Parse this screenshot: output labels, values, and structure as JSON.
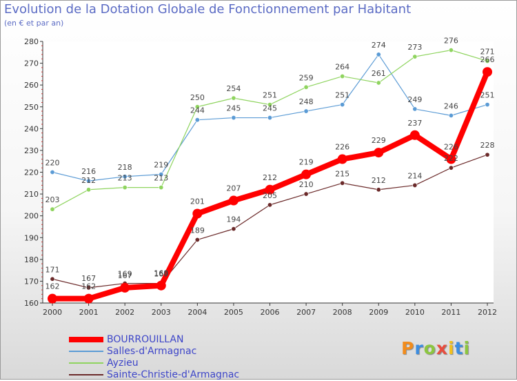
{
  "header": {
    "title": "Evolution de la Dotation Globale de Fonctionnement par Habitant",
    "subtitle": "(en € et par an)"
  },
  "logo": {
    "letters": [
      "P",
      "r",
      "o",
      "x",
      "i",
      "t",
      "i"
    ],
    "colors": [
      "#f28c1c",
      "#3c8de0",
      "#8cc63f",
      "#e84c3d",
      "#f2c01c",
      "#3c8de0",
      "#8cc63f"
    ]
  },
  "chart_data": {
    "type": "line",
    "title": "Evolution de la Dotation Globale de Fonctionnement par Habitant",
    "subtitle": "(en € et par an)",
    "xlabel": "",
    "ylabel": "",
    "ylim": [
      160,
      280
    ],
    "yticks": [
      160,
      170,
      180,
      190,
      200,
      210,
      220,
      230,
      240,
      250,
      260,
      270,
      280
    ],
    "grid": false,
    "legend_position": "bottom-left",
    "x": [
      "2000",
      "2001",
      "2002",
      "2003",
      "2004",
      "2005",
      "2006",
      "2007",
      "2008",
      "2009",
      "2010",
      "2011",
      "2012"
    ],
    "series": [
      {
        "name": "BOURROUILLAN",
        "color": "#ff0000",
        "values": [
          162,
          162,
          167,
          168,
          201,
          207,
          212,
          219,
          226,
          229,
          237,
          226,
          266
        ],
        "labels": [
          "162",
          "162",
          "167",
          "168",
          "201",
          "207",
          "212",
          "219",
          "226",
          "229",
          "237",
          "226",
          "266"
        ]
      },
      {
        "name": "Salles-d'Armagnac",
        "color": "#5b9bd5",
        "values": [
          220,
          216,
          218,
          219,
          244,
          245,
          245,
          248,
          251,
          274,
          249,
          246,
          251
        ],
        "labels": [
          "220",
          "216",
          "218",
          "219",
          "244",
          "245",
          "245",
          "248",
          "251",
          "274",
          "249",
          "246",
          "251"
        ]
      },
      {
        "name": "Ayzieu",
        "color": "#8fd45f",
        "values": [
          203,
          212,
          213,
          213,
          250,
          254,
          251,
          259,
          264,
          261,
          273,
          276,
          271
        ],
        "labels": [
          "203",
          "212",
          "213",
          "213",
          "250",
          "254",
          "251",
          "259",
          "264",
          "261",
          "273",
          "276",
          "271"
        ]
      },
      {
        "name": "Sainte-Christie-d'Armagnac",
        "color": "#6b2a2a",
        "values": [
          171,
          167,
          169,
          169,
          189,
          194,
          205,
          210,
          215,
          212,
          214,
          222,
          228
        ],
        "labels": [
          "171",
          "167",
          "169",
          "169",
          "189",
          "194",
          "205",
          "210",
          "215",
          "212",
          "214",
          "222",
          "228"
        ]
      }
    ]
  }
}
